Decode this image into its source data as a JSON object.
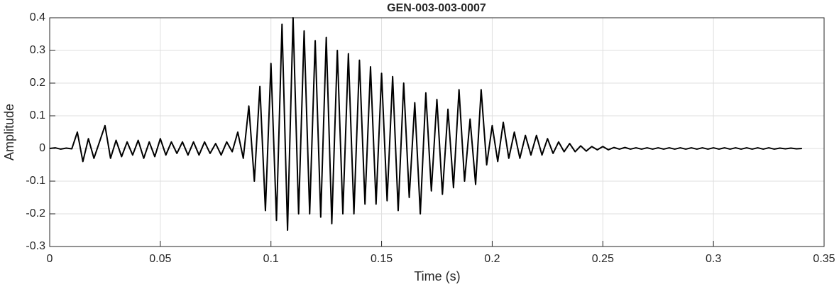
{
  "chart_data": {
    "type": "line",
    "title": "GEN-003-003-0007",
    "xlabel": "Time (s)",
    "ylabel": "Amplitude",
    "x": [
      0,
      0.0025,
      0.005,
      0.0075,
      0.01,
      0.0125,
      0.015,
      0.0175,
      0.02,
      0.0225,
      0.025,
      0.0275,
      0.03,
      0.0325,
      0.035,
      0.0375,
      0.04,
      0.0425,
      0.045,
      0.0475,
      0.05,
      0.0525,
      0.055,
      0.0575,
      0.06,
      0.0625,
      0.065,
      0.0675,
      0.07,
      0.0725,
      0.075,
      0.0775,
      0.08,
      0.0825,
      0.085,
      0.0875,
      0.09,
      0.0925,
      0.095,
      0.0975,
      0.1,
      0.1025,
      0.105,
      0.1075,
      0.11,
      0.1125,
      0.115,
      0.1175,
      0.12,
      0.1225,
      0.125,
      0.1275,
      0.13,
      0.1325,
      0.135,
      0.1375,
      0.14,
      0.1425,
      0.145,
      0.1475,
      0.15,
      0.1525,
      0.155,
      0.1575,
      0.16,
      0.1625,
      0.165,
      0.1675,
      0.17,
      0.1725,
      0.175,
      0.1775,
      0.18,
      0.1825,
      0.185,
      0.1875,
      0.19,
      0.1925,
      0.195,
      0.1975,
      0.2,
      0.2025,
      0.205,
      0.2075,
      0.21,
      0.2125,
      0.215,
      0.2175,
      0.22,
      0.2225,
      0.225,
      0.2275,
      0.23,
      0.2325,
      0.235,
      0.2375,
      0.24,
      0.2425,
      0.245,
      0.2475,
      0.25,
      0.2525,
      0.255,
      0.2575,
      0.26,
      0.2625,
      0.265,
      0.2675,
      0.27,
      0.2725,
      0.275,
      0.2775,
      0.28,
      0.2825,
      0.285,
      0.2875,
      0.29,
      0.2925,
      0.295,
      0.2975,
      0.3,
      0.3025,
      0.305,
      0.3075,
      0.31,
      0.3125,
      0.315,
      0.3175,
      0.32,
      0.3225,
      0.325,
      0.3275,
      0.33,
      0.3325,
      0.335,
      0.3375,
      0.34
    ],
    "series": [
      {
        "name": "Amplitude",
        "color": "#000000",
        "values": [
          0,
          0.002,
          -0.002,
          0.001,
          -0.001,
          0.05,
          -0.04,
          0.03,
          -0.03,
          0.02,
          0.07,
          -0.03,
          0.025,
          -0.025,
          0.02,
          -0.02,
          0.025,
          -0.03,
          0.02,
          -0.025,
          0.03,
          -0.02,
          0.02,
          -0.015,
          0.02,
          -0.02,
          0.02,
          -0.02,
          0.02,
          -0.015,
          0.015,
          -0.02,
          0.02,
          -0.01,
          0.05,
          -0.03,
          0.13,
          -0.1,
          0.19,
          -0.19,
          0.26,
          -0.22,
          0.38,
          -0.25,
          0.4,
          -0.2,
          0.36,
          -0.2,
          0.33,
          -0.21,
          0.34,
          -0.23,
          0.3,
          -0.2,
          0.29,
          -0.2,
          0.27,
          -0.17,
          0.25,
          -0.17,
          0.23,
          -0.16,
          0.22,
          -0.19,
          0.2,
          -0.15,
          0.14,
          -0.2,
          0.17,
          -0.13,
          0.15,
          -0.14,
          0.12,
          -0.12,
          0.18,
          -0.1,
          0.09,
          -0.11,
          0.18,
          -0.05,
          0.07,
          -0.04,
          0.08,
          -0.03,
          0.05,
          -0.03,
          0.04,
          -0.02,
          0.04,
          -0.02,
          0.03,
          -0.015,
          0.02,
          -0.01,
          0.015,
          -0.01,
          0.008,
          -0.008,
          0.006,
          -0.004,
          0.006,
          -0.004,
          0.003,
          -0.002,
          0.003,
          -0.002,
          0.002,
          -0.002,
          0.002,
          -0.002,
          0.002,
          -0.002,
          0.002,
          -0.002,
          0.002,
          -0.002,
          0.002,
          -0.002,
          0.002,
          -0.002,
          0.002,
          -0.002,
          0.002,
          -0.002,
          0.002,
          -0.002,
          0.002,
          -0.002,
          0.002,
          -0.002,
          0.002,
          -0.002,
          0.001,
          -0.001,
          0.001,
          -0.001,
          0
        ]
      }
    ],
    "xlim": [
      0,
      0.35
    ],
    "xticks": [
      0,
      0.05,
      0.1,
      0.15,
      0.2,
      0.25,
      0.3,
      0.35
    ],
    "ylim": [
      -0.3,
      0.4
    ],
    "yticks": [
      -0.3,
      -0.2,
      -0.1,
      0,
      0.1,
      0.2,
      0.3,
      0.4
    ],
    "grid": true
  }
}
